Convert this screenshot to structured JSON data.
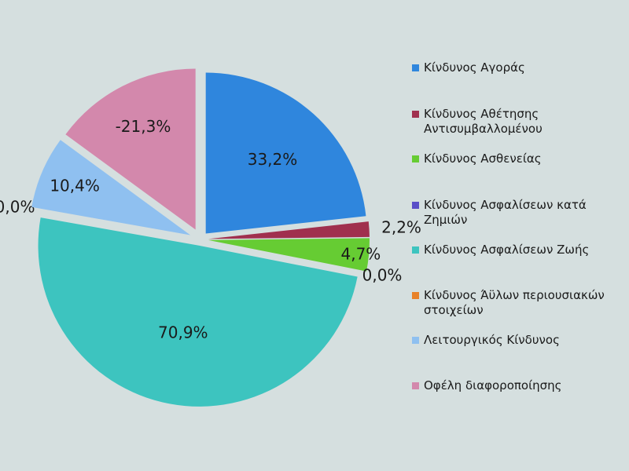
{
  "chart_data": {
    "type": "pie",
    "title": "",
    "slices": [
      {
        "name": "Κίνδυνος Αγοράς",
        "label": "33,2%",
        "value": 33.2,
        "color": "#2f86dd"
      },
      {
        "name": "Κίνδυνος Αθέτησης Αντισυμβαλλομένου",
        "label": "2,2%",
        "value": 2.2,
        "color": "#a0304e"
      },
      {
        "name": "Κίνδυνος Ασθενείας",
        "label": "4,7%",
        "value": 4.7,
        "color": "#66cc33"
      },
      {
        "name": "Κίνδυνος Ασφαλίσεων κατά Ζημιών",
        "label": "0,0%",
        "value": 0.0,
        "color": "#5a4fc8"
      },
      {
        "name": "Κίνδυνος Ασφαλίσεων Ζωής",
        "label": "70,9%",
        "value": 70.9,
        "color": "#3dc4bf"
      },
      {
        "name": "Κίνδυνος Άϋλων περιουσιακών στοιχείων",
        "label": "0,0%",
        "value": 0.0,
        "color": "#e8822a"
      },
      {
        "name": "Λειτουργικός Κίνδυνος",
        "label": "10,4%",
        "value": 10.4,
        "color": "#8fc0f0"
      },
      {
        "name": "Οφέλη διαφοροποίησης",
        "label": "-21,3%",
        "value": -21.3,
        "color": "#d388ac"
      }
    ],
    "legend_position": "right"
  },
  "legend": {
    "items": [
      {
        "text": "Κίνδυνος Αγοράς",
        "color": "#2f86dd"
      },
      {
        "text": "Κίνδυνος Αθέτησης\nΑντισυμβαλλομένου",
        "color": "#a0304e"
      },
      {
        "text": "Κίνδυνος Ασθενείας",
        "color": "#66cc33"
      },
      {
        "text": "Κίνδυνος Ασφαλίσεων κατά\nΖημιών",
        "color": "#5a4fc8"
      },
      {
        "text": "Κίνδυνος Ασφαλίσεων Ζωής",
        "color": "#3dc4bf"
      },
      {
        "text": "Κίνδυνος Άϋλων περιουσιακών\nστοιχείων",
        "color": "#e8822a"
      },
      {
        "text": "Λειτουργικός Κίνδυνος",
        "color": "#8fc0f0"
      },
      {
        "text": "Οφέλη διαφοροποίησης",
        "color": "#d388ac"
      }
    ]
  }
}
